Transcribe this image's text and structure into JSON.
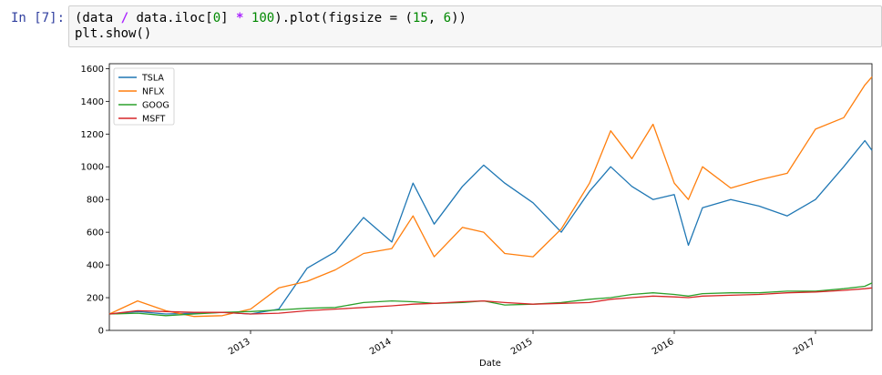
{
  "cell": {
    "prompt": "In [7]:",
    "code": {
      "line1_parts": [
        "(data ",
        "/",
        " data.iloc[",
        "0",
        "] ",
        "*",
        " ",
        "100",
        ").plot(figsize = (",
        "15",
        ", ",
        "6",
        "))"
      ],
      "line2": "plt.show()"
    }
  },
  "chart_data": {
    "type": "line",
    "title": "",
    "xlabel": "Date",
    "ylabel": "",
    "xlim": [
      2012.0,
      2017.4
    ],
    "ylim": [
      0,
      1630
    ],
    "x_ticks": [
      2013,
      2014,
      2015,
      2016,
      2017
    ],
    "x_tick_labels": [
      "2013",
      "2014",
      "2015",
      "2016",
      "2017"
    ],
    "y_ticks": [
      0,
      200,
      400,
      600,
      800,
      1000,
      1200,
      1400,
      1600
    ],
    "y_tick_labels": [
      "0",
      "200",
      "400",
      "600",
      "800",
      "1000",
      "1200",
      "1400",
      "1600"
    ],
    "grid": false,
    "legend": "upper left",
    "x": [
      2012.0,
      2012.2,
      2012.4,
      2012.6,
      2012.8,
      2013.0,
      2013.2,
      2013.4,
      2013.6,
      2013.8,
      2014.0,
      2014.15,
      2014.3,
      2014.5,
      2014.65,
      2014.8,
      2015.0,
      2015.2,
      2015.4,
      2015.55,
      2015.7,
      2015.85,
      2016.0,
      2016.1,
      2016.2,
      2016.4,
      2016.6,
      2016.8,
      2017.0,
      2017.2,
      2017.35,
      2017.4
    ],
    "series": [
      {
        "name": "TSLA",
        "color": "#1f77b4",
        "values": [
          100,
          115,
          100,
          105,
          110,
          100,
          130,
          380,
          480,
          690,
          540,
          900,
          650,
          880,
          1010,
          900,
          780,
          600,
          850,
          1000,
          880,
          800,
          830,
          520,
          750,
          800,
          760,
          700,
          800,
          1000,
          1160,
          1100
        ]
      },
      {
        "name": "NFLX",
        "color": "#ff7f0e",
        "values": [
          100,
          180,
          120,
          85,
          90,
          130,
          260,
          300,
          370,
          470,
          500,
          700,
          450,
          630,
          600,
          470,
          450,
          620,
          900,
          1220,
          1050,
          1260,
          900,
          800,
          1000,
          870,
          920,
          960,
          1230,
          1300,
          1500,
          1550
        ]
      },
      {
        "name": "GOOG",
        "color": "#2ca02c",
        "values": [
          100,
          105,
          90,
          100,
          110,
          115,
          125,
          135,
          140,
          170,
          180,
          175,
          165,
          170,
          180,
          155,
          160,
          170,
          190,
          200,
          220,
          230,
          220,
          210,
          225,
          230,
          230,
          240,
          240,
          255,
          270,
          290
        ]
      },
      {
        "name": "MSFT",
        "color": "#d62728",
        "values": [
          100,
          120,
          115,
          110,
          110,
          100,
          105,
          120,
          130,
          140,
          150,
          160,
          165,
          175,
          180,
          170,
          160,
          165,
          170,
          190,
          200,
          210,
          205,
          200,
          210,
          215,
          220,
          230,
          235,
          245,
          255,
          260
        ]
      }
    ]
  }
}
